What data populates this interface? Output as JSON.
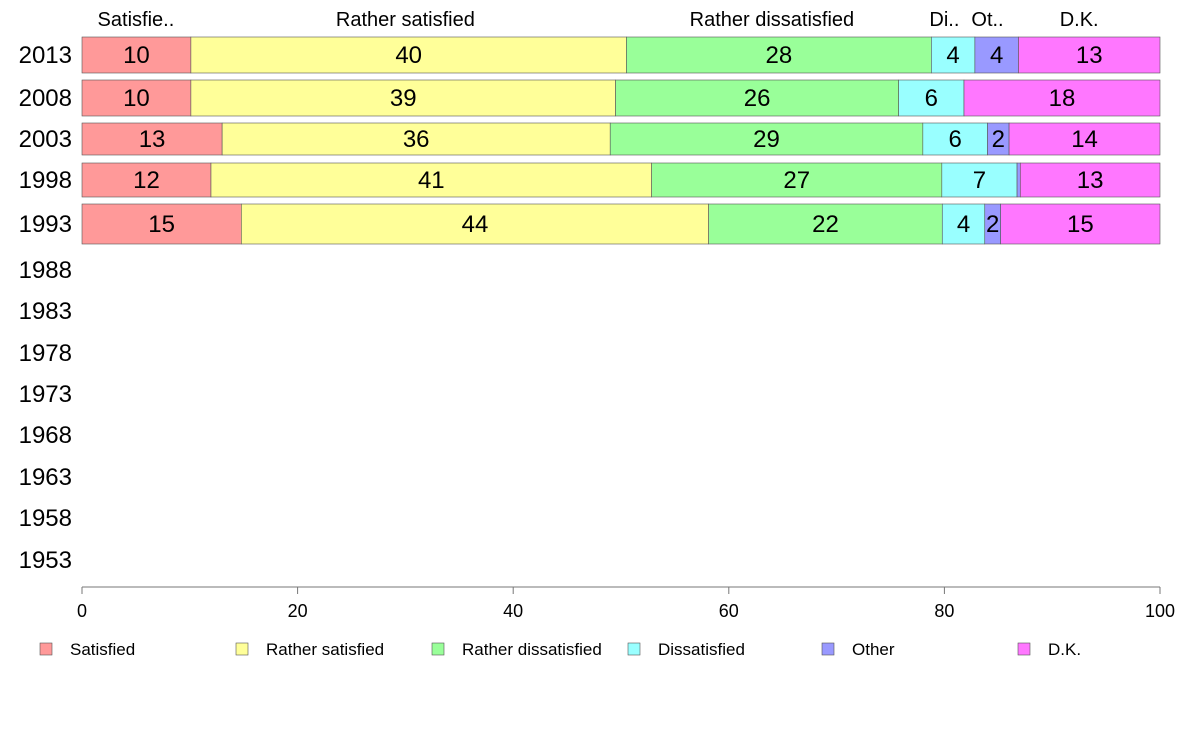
{
  "chart_data": {
    "type": "bar",
    "orientation": "horizontal-stacked",
    "categories": [
      "2013",
      "2008",
      "2003",
      "1998",
      "1993",
      "1988",
      "1983",
      "1978",
      "1973",
      "1968",
      "1963",
      "1958",
      "1953"
    ],
    "series": [
      {
        "name": "Satisfied",
        "color": "#ff9999",
        "values": [
          10,
          10,
          13,
          12,
          15,
          null,
          null,
          null,
          null,
          null,
          null,
          null,
          null
        ]
      },
      {
        "name": "Rather satisfied",
        "color": "#ffff99",
        "values": [
          40,
          39,
          36,
          41,
          44,
          null,
          null,
          null,
          null,
          null,
          null,
          null,
          null
        ]
      },
      {
        "name": "Rather dissatisfied",
        "color": "#99ff99",
        "values": [
          28,
          26,
          29,
          27,
          22,
          null,
          null,
          null,
          null,
          null,
          null,
          null,
          null
        ]
      },
      {
        "name": "Dissatisfied",
        "color": "#99ffff",
        "values": [
          4,
          6,
          6,
          7,
          4,
          null,
          null,
          null,
          null,
          null,
          null,
          null,
          null
        ]
      },
      {
        "name": "Other",
        "color": "#9999ff",
        "values": [
          4,
          0,
          2,
          0.3,
          1.5,
          null,
          null,
          null,
          null,
          null,
          null,
          null,
          null
        ]
      },
      {
        "name": "D.K.",
        "color": "#ff77ff",
        "values": [
          13,
          18,
          14,
          13,
          15,
          null,
          null,
          null,
          null,
          null,
          null,
          null,
          null
        ]
      }
    ],
    "value_labels": [
      [
        "10",
        "40",
        "28",
        "4",
        "4",
        "13"
      ],
      [
        "10",
        "39",
        "26",
        "6",
        "",
        "18"
      ],
      [
        "13",
        "36",
        "29",
        "6",
        "2",
        "14"
      ],
      [
        "12",
        "41",
        "27",
        "7",
        "",
        "13"
      ],
      [
        "15",
        "44",
        "22",
        "4",
        "2",
        "15"
      ]
    ],
    "header_labels": [
      "Satisfie..",
      "Rather satisfied",
      "Rather dissatisfied",
      "Di..",
      "Ot..",
      "D.K."
    ],
    "xlim": [
      0,
      100
    ],
    "xticks": [
      0,
      20,
      40,
      60,
      80,
      100
    ],
    "legend_position": "bottom",
    "grid": false
  }
}
